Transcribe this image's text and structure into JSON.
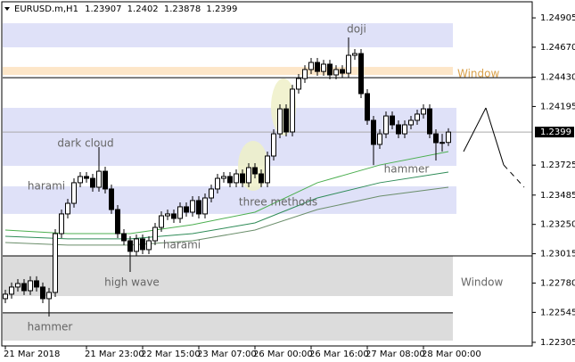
{
  "chart_data": {
    "type": "candlestick",
    "symbol": "EURUSD.m,H1",
    "ylim": [
      1.22276,
      1.25034
    ],
    "yticks": [
      1.24905,
      {
        "value": 1.2467,
        "label": "1.24670"
      },
      {
        "value": 1.2443,
        "label": "1.24430"
      },
      1.24195,
      1.23725,
      1.23485,
      {
        "value": 1.2325,
        "label": "1.23250"
      },
      1.23015,
      {
        "value": 1.2278,
        "label": "1.22780"
      },
      1.22545,
      1.22305
    ],
    "categories": [
      "21 Mar 2018",
      null,
      null,
      null,
      null,
      null,
      null,
      null,
      null,
      null,
      null,
      null,
      null,
      "21 Mar 23:00",
      null,
      null,
      null,
      null,
      null,
      null,
      null,
      null,
      "22 Mar 15:00",
      null,
      null,
      null,
      null,
      null,
      null,
      null,
      null,
      "23 Mar 07:00",
      null,
      null,
      null,
      null,
      null,
      null,
      null,
      null,
      "26 Mar 00:00",
      null,
      null,
      null,
      null,
      null,
      null,
      null,
      null,
      "26 Mar 16:00",
      null,
      null,
      null,
      null,
      null,
      null,
      null,
      null,
      "27 Mar 08:00",
      null,
      null,
      null,
      null,
      null,
      null,
      null,
      null,
      "28 Mar 00:00",
      null,
      null,
      null,
      null
    ],
    "open": [
      1.22655,
      1.22691,
      1.22748,
      1.22776,
      1.22719,
      1.22798,
      1.22748,
      1.22655,
      1.22705,
      1.23176,
      1.23334,
      1.23419,
      1.23584,
      1.23634,
      1.23619,
      1.23548,
      1.23676,
      1.23534,
      1.23369,
      1.23176,
      1.23119,
      1.23034,
      1.23134,
      1.23048,
      1.23119,
      1.23226,
      1.23319,
      1.23334,
      1.23298,
      1.23391,
      1.23348,
      1.23441,
      1.23334,
      1.23462,
      1.23534,
      1.23619,
      1.23634,
      1.23584,
      1.23655,
      1.23584,
      1.23705,
      1.23655,
      1.23584,
      1.23798,
      1.23976,
      1.24176,
      1.23991,
      1.24334,
      1.24419,
      1.24491,
      1.24548,
      1.24476,
      1.24534,
      1.24448,
      1.24491,
      1.24462,
      1.24605,
      1.24619,
      1.24298,
      1.24084,
      1.23891,
      1.23976,
      1.24119,
      1.24048,
      1.23976,
      1.24048,
      1.24084,
      1.24134,
      1.24176,
      1.23976,
      1.23905,
      1.23907
    ],
    "high": [
      1.22726,
      1.22784,
      1.22812,
      1.22812,
      1.22834,
      1.22834,
      1.22784,
      1.22741,
      1.23212,
      1.23369,
      1.23455,
      1.23619,
      1.23669,
      1.23669,
      1.23655,
      1.23869,
      1.23712,
      1.23569,
      1.23405,
      1.23212,
      1.23155,
      1.23169,
      1.23169,
      1.23155,
      1.23262,
      1.23355,
      1.23369,
      1.23369,
      1.23426,
      1.23426,
      1.23476,
      1.23476,
      1.23498,
      1.23569,
      1.23655,
      1.23669,
      1.23669,
      1.23691,
      1.23691,
      1.23741,
      1.23741,
      1.23691,
      1.23834,
      1.24012,
      1.24212,
      1.24212,
      1.24369,
      1.24455,
      1.24526,
      1.24584,
      1.24584,
      1.24569,
      1.24569,
      1.24526,
      1.24526,
      1.24748,
      1.24655,
      1.24655,
      1.24334,
      1.24119,
      1.24012,
      1.24155,
      1.24155,
      1.24084,
      1.24084,
      1.24119,
      1.24169,
      1.24212,
      1.24212,
      1.24012,
      1.23976,
      1.2402
    ],
    "low": [
      1.22619,
      1.22655,
      1.22712,
      1.22684,
      1.22684,
      1.22712,
      1.22619,
      1.22512,
      1.22669,
      1.23141,
      1.23298,
      1.23384,
      1.23548,
      1.23584,
      1.23512,
      1.23512,
      1.23498,
      1.23334,
      1.23141,
      1.23084,
      1.22869,
      1.22998,
      1.23012,
      1.23012,
      1.23084,
      1.23191,
      1.23284,
      1.23262,
      1.23262,
      1.23312,
      1.23312,
      1.23298,
      1.23298,
      1.23426,
      1.23498,
      1.23584,
      1.23548,
      1.23548,
      1.23548,
      1.23548,
      1.23619,
      1.23548,
      1.23548,
      1.23762,
      1.23941,
      1.23955,
      1.23955,
      1.24298,
      1.24384,
      1.24455,
      1.24441,
      1.24441,
      1.24412,
      1.24412,
      1.24426,
      1.24426,
      1.24569,
      1.24262,
      1.24048,
      1.23726,
      1.23855,
      1.23941,
      1.24012,
      1.23941,
      1.23941,
      1.24012,
      1.24048,
      1.24098,
      1.23941,
      1.23762,
      1.23834,
      1.23878
    ],
    "close": [
      1.22691,
      1.22748,
      1.22776,
      1.22719,
      1.22798,
      1.22748,
      1.22655,
      1.22705,
      1.23176,
      1.23334,
      1.23419,
      1.23584,
      1.23634,
      1.23619,
      1.23548,
      1.23676,
      1.23534,
      1.23369,
      1.23176,
      1.23119,
      1.23034,
      1.23134,
      1.23048,
      1.23119,
      1.23226,
      1.23319,
      1.23334,
      1.23298,
      1.23391,
      1.23348,
      1.23441,
      1.23334,
      1.23462,
      1.23534,
      1.23619,
      1.23634,
      1.23584,
      1.23655,
      1.23584,
      1.23705,
      1.23655,
      1.23584,
      1.23798,
      1.23976,
      1.24176,
      1.23991,
      1.24334,
      1.24419,
      1.24491,
      1.24548,
      1.24476,
      1.24534,
      1.24448,
      1.24491,
      1.24462,
      1.24605,
      1.24619,
      1.24298,
      1.24084,
      1.23891,
      1.23976,
      1.24119,
      1.24048,
      1.23976,
      1.24048,
      1.24084,
      1.24134,
      1.24176,
      1.23976,
      1.23905,
      1.23907,
      1.2399
    ],
    "indicators": [
      {
        "color": "#4caf50",
        "x": [
          0,
          10,
          20,
          30,
          40,
          50,
          60,
          71
        ],
        "values": [
          1.23205,
          1.23176,
          1.23176,
          1.23248,
          1.23348,
          1.23584,
          1.23726,
          1.23834
        ]
      },
      {
        "color": "#2e8b57",
        "x": [
          0,
          10,
          20,
          30,
          40,
          50,
          60,
          71
        ],
        "values": [
          1.23155,
          1.23134,
          1.23134,
          1.23176,
          1.23262,
          1.23462,
          1.23584,
          1.23669
        ]
      },
      {
        "color": "#6b8e6b",
        "x": [
          0,
          10,
          20,
          30,
          40,
          50,
          60,
          71
        ],
        "values": [
          1.23105,
          1.23084,
          1.23084,
          1.23119,
          1.23205,
          1.23369,
          1.23476,
          1.23548
        ]
      }
    ],
    "zones": [
      {
        "range": [
          1.24669,
          1.24862
        ],
        "color": "#dfe1f8"
      },
      {
        "range": [
          1.24448,
          1.24512
        ],
        "color": "#fde6c8"
      },
      {
        "range": [
          1.23719,
          1.24184
        ],
        "color": "#dfe1f8"
      },
      {
        "range": [
          1.23334,
          1.23555
        ],
        "color": "#dfe1f8"
      },
      {
        "range": [
          1.22676,
          1.22998
        ],
        "color": "#dcdcdc"
      },
      {
        "range": [
          1.22319,
          1.22541
        ],
        "color": "#dcdcdc"
      }
    ],
    "hlines": [
      1.24426,
      1.22998,
      1.22541
    ],
    "annotations": [
      "doji",
      "dark cloud",
      "harami",
      "three methods",
      "harami",
      "hammer",
      "high wave",
      "hammer",
      "Window",
      "Window"
    ]
  }
}
